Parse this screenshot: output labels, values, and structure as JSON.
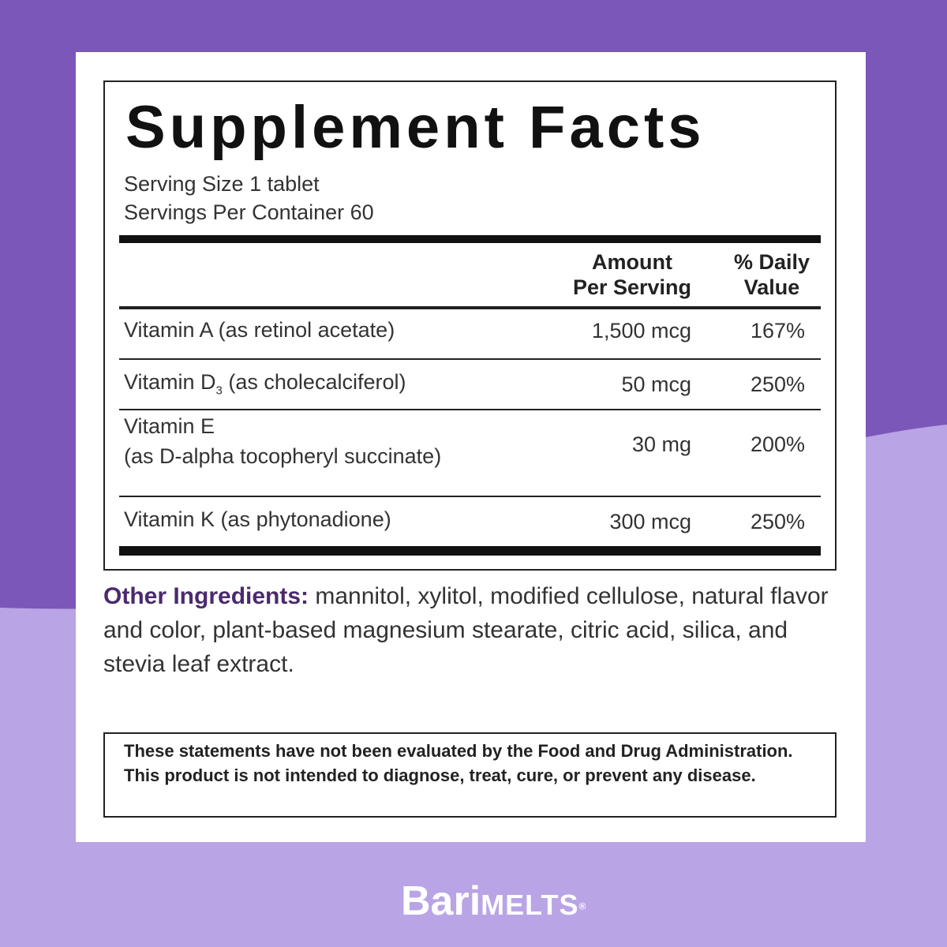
{
  "colors": {
    "background_top": "#7b57b9",
    "background_bottom": "#b9a4e6",
    "label_accent": "#4a2a6e"
  },
  "facts": {
    "title": "Supplement Facts",
    "serving_size": "Serving Size 1 tablet",
    "servings_per_container": "Servings Per Container 60",
    "header": {
      "amount_line1": "Amount",
      "amount_line2": "Per Serving",
      "dv_line1": "% Daily",
      "dv_line2": "Value"
    },
    "rows": [
      {
        "name": "Vitamin A (as retinol acetate)",
        "amount": "1,500 mcg",
        "dv": "167%"
      },
      {
        "name_pre": "Vitamin D",
        "name_sub": "3",
        "name_post": " (as cholecalciferol)",
        "amount": "50 mcg",
        "dv": "250%"
      },
      {
        "name": "Vitamin E",
        "name2": "(as D-alpha tocopheryl succinate)",
        "amount": "30 mg",
        "dv": "200%"
      },
      {
        "name": "Vitamin K (as phytonadione)",
        "amount": "300 mcg",
        "dv": "250%"
      }
    ]
  },
  "other_ingredients": {
    "label": "Other Ingredients:",
    "text": " mannitol, xylitol, modified cellulose, natural flavor and color, plant-based magnesium stearate, citric acid, silica, and stevia leaf extract."
  },
  "disclaimer": "These statements have not been evaluated by the Food and Drug Administration. This product is not intended to diagnose, treat, cure, or prevent any disease.",
  "logo": {
    "part1": "Bari",
    "part2": "MELTS",
    "mark": "®"
  }
}
